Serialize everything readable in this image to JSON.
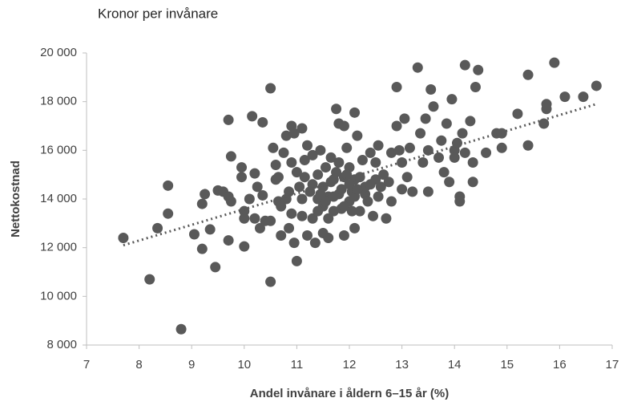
{
  "chart_data": {
    "type": "scatter",
    "title": "Kronor per invånare",
    "xlabel": "Andel invånare i åldern 6–15 år (%)",
    "ylabel": "Nettokostnad",
    "color": "#595959",
    "xlim": [
      7,
      17
    ],
    "xticks": [
      7,
      8,
      9,
      10,
      11,
      12,
      13,
      14,
      15,
      16,
      17
    ],
    "ylim": [
      8000,
      20000
    ],
    "yticks": [
      {
        "value": 8000,
        "label": "8 000"
      },
      {
        "value": 10000,
        "label": "10 000"
      },
      {
        "value": 12000,
        "label": "12 000"
      },
      {
        "value": 14000,
        "label": "14 000"
      },
      {
        "value": 16000,
        "label": "16 000"
      },
      {
        "value": 18000,
        "label": "18 000"
      },
      {
        "value": 20000,
        "label": "20 000"
      }
    ],
    "trendline": {
      "x": [
        7.7,
        16.7
      ],
      "y": [
        12100,
        17900
      ]
    },
    "x": [
      7.7,
      8.2,
      8.35,
      8.55,
      8.55,
      8.8,
      9.05,
      9.2,
      9.2,
      9.25,
      9.35,
      9.45,
      9.5,
      9.6,
      9.7,
      9.7,
      9.75,
      9.7,
      9.75,
      9.95,
      9.95,
      10.0,
      10.0,
      10.0,
      10.1,
      10.15,
      10.2,
      10.2,
      10.25,
      10.3,
      10.35,
      10.35,
      10.4,
      10.5,
      10.5,
      10.5,
      10.55,
      10.6,
      10.6,
      10.65,
      10.65,
      10.7,
      10.75,
      10.8,
      10.8,
      10.85,
      10.9,
      10.9,
      10.9,
      10.95,
      10.95,
      11.0,
      11.0,
      11.05,
      11.1,
      11.1,
      11.1,
      11.15,
      11.2,
      11.2,
      11.25,
      11.3,
      11.3,
      11.35,
      11.4,
      11.4,
      11.45,
      11.5,
      11.5,
      11.5,
      11.55,
      11.6,
      11.6,
      11.65,
      11.7,
      11.7,
      11.75,
      11.8,
      11.8,
      11.8,
      11.85,
      11.9,
      11.9,
      11.9,
      11.95,
      12.0,
      12.0,
      12.05,
      12.1,
      12.1,
      12.1,
      12.15,
      12.2,
      12.25,
      12.3,
      12.35,
      12.4,
      12.45,
      12.5,
      12.5,
      12.55,
      12.6,
      12.65,
      12.7,
      12.75,
      12.8,
      12.8,
      12.9,
      12.9,
      12.95,
      13.0,
      13.0,
      13.05,
      13.1,
      13.15,
      13.2,
      13.3,
      13.35,
      13.4,
      13.45,
      13.5,
      13.5,
      13.55,
      13.6,
      13.7,
      13.75,
      13.8,
      13.85,
      13.9,
      13.95,
      14.0,
      14.0,
      14.05,
      14.1,
      14.1,
      14.15,
      14.2,
      14.2,
      14.3,
      14.35,
      14.35,
      14.4,
      14.45,
      14.6,
      14.8,
      14.9,
      14.9,
      15.2,
      15.4,
      15.4,
      15.7,
      15.75,
      15.75,
      15.9,
      16.1,
      16.45,
      16.7,
      11.3,
      11.55,
      11.7,
      11.85,
      12.0,
      12.1,
      12.2,
      12.3,
      11.4,
      11.6,
      11.9,
      12.05,
      11.15,
      10.85,
      10.7,
      11.75,
      12.4,
      12.55,
      11.45,
      11.65,
      11.95,
      12.15
    ],
    "values": [
      12400,
      10700,
      12800,
      13400,
      14550,
      8650,
      12550,
      11950,
      13800,
      14200,
      12750,
      11200,
      14350,
      14300,
      17250,
      14100,
      15750,
      12300,
      13900,
      15300,
      14900,
      13500,
      13200,
      12050,
      14000,
      17400,
      15050,
      13200,
      14500,
      12800,
      17150,
      14150,
      13100,
      18550,
      13100,
      10600,
      16100,
      14800,
      15400,
      14900,
      13900,
      12500,
      15900,
      16600,
      14000,
      12800,
      17000,
      15500,
      13400,
      16700,
      12200,
      11450,
      15100,
      14500,
      16900,
      14000,
      13300,
      15600,
      12500,
      16200,
      14300,
      15800,
      13200,
      12200,
      14000,
      15000,
      16000,
      12600,
      13700,
      14500,
      15300,
      12400,
      14100,
      15700,
      13500,
      14800,
      17700,
      17100,
      15500,
      14200,
      13600,
      12500,
      17000,
      14900,
      16100,
      13900,
      15300,
      14300,
      17550,
      12800,
      14800,
      16600,
      13500,
      15600,
      14200,
      13900,
      15900,
      13300,
      14800,
      15500,
      16200,
      14500,
      15000,
      13200,
      14700,
      15900,
      13900,
      18600,
      17000,
      16000,
      15500,
      14400,
      17300,
      14900,
      16100,
      14300,
      19400,
      16700,
      15500,
      17300,
      14300,
      16000,
      18500,
      17800,
      15700,
      16400,
      15100,
      17100,
      14700,
      18100,
      16000,
      15700,
      16300,
      14100,
      13900,
      16700,
      15900,
      19500,
      17200,
      14700,
      15500,
      18600,
      19300,
      15900,
      16700,
      16100,
      16700,
      17500,
      16200,
      19100,
      17100,
      17900,
      17700,
      19600,
      18200,
      18200,
      18650,
      14600,
      13900,
      14100,
      14400,
      14600,
      14100,
      14900,
      14500,
      13500,
      13200,
      13700,
      13500,
      14900,
      14300,
      13700,
      15100,
      14600,
      14100,
      14200,
      14700,
      15000,
      14400
    ]
  }
}
